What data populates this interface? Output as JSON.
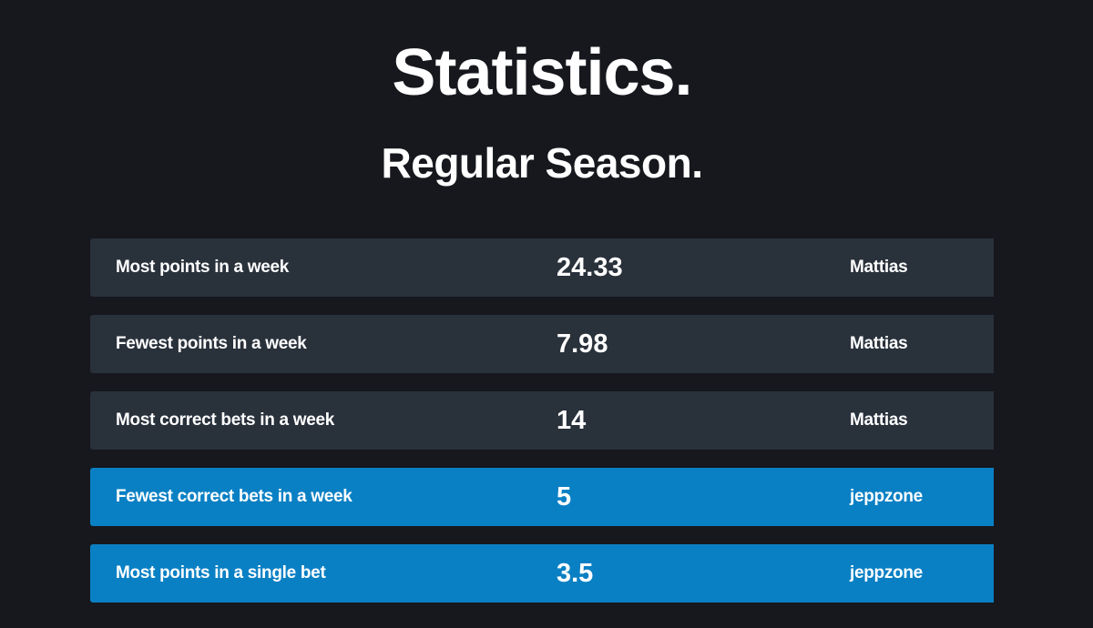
{
  "page": {
    "title": "Statistics.",
    "subtitle": "Regular Season."
  },
  "colors": {
    "background": "#16181d",
    "row_default": "#29313b",
    "row_highlight": "#0a80c4",
    "text": "#ffffff"
  },
  "stats": [
    {
      "label": "Most points in a week",
      "value": "24.33",
      "holder": "Mattias",
      "highlighted": false
    },
    {
      "label": "Fewest points in a week",
      "value": "7.98",
      "holder": "Mattias",
      "highlighted": false
    },
    {
      "label": "Most correct bets in a week",
      "value": "14",
      "holder": "Mattias",
      "highlighted": false
    },
    {
      "label": "Fewest correct bets in a week",
      "value": "5",
      "holder": "jeppzone",
      "highlighted": true
    },
    {
      "label": "Most points in a single bet",
      "value": "3.5",
      "holder": "jeppzone",
      "highlighted": true
    }
  ]
}
